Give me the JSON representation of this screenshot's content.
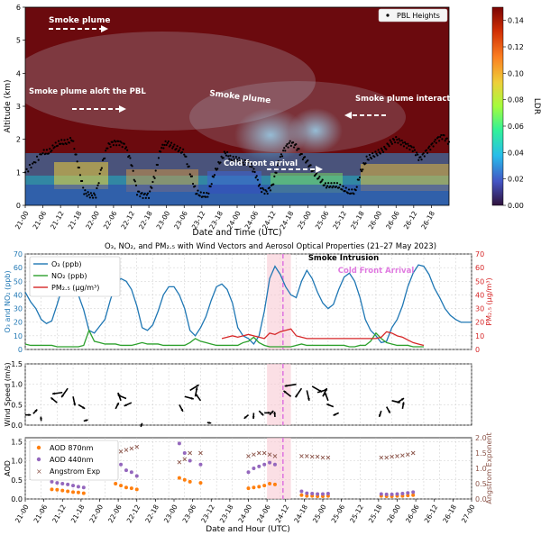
{
  "chart_data": [
    {
      "type": "heatmap",
      "xlabel": "Date and Time (UTC)",
      "ylabel": "Altitude (km)",
      "ylim": [
        0,
        6
      ],
      "yticks": [
        "0",
        "1",
        "2",
        "3",
        "4",
        "5",
        "6"
      ],
      "xticks": [
        "21-00",
        "21-06",
        "21-12",
        "21-18",
        "22-00",
        "22-06",
        "22-12",
        "22-18",
        "23-00",
        "23-06",
        "23-12",
        "23-18",
        "24-00",
        "24-06",
        "24-12",
        "24-18",
        "25-00",
        "25-06",
        "25-12",
        "25-18",
        "26-00",
        "26-06",
        "26-12",
        "26-18"
      ],
      "colorbar": {
        "label": "LDR",
        "range": [
          0,
          0.15
        ],
        "ticks": [
          "0.00",
          "0.02",
          "0.04",
          "0.06",
          "0.08",
          "0.10",
          "0.12",
          "0.14"
        ]
      },
      "legend": {
        "entry": "PBL Heights",
        "placement": "top-right"
      },
      "annotations": [
        "Smoke plume",
        "Smoke plume aloft the PBL",
        "Smoke plume",
        "Smoke plume interacting with the PBL",
        "Cold front arrival"
      ],
      "pbl_heights": {
        "x_hours": [
          0,
          3,
          6,
          8,
          10,
          12,
          14,
          16,
          18,
          20,
          22,
          24,
          26,
          28,
          30,
          32,
          34,
          36,
          38,
          40,
          42,
          44,
          46,
          48,
          50,
          52,
          54,
          56,
          58,
          60,
          62,
          64,
          66,
          68,
          70,
          72,
          74,
          76,
          78,
          80,
          82,
          84,
          86,
          88,
          90,
          92,
          94,
          96,
          98,
          100,
          102,
          104,
          106,
          108,
          110,
          112,
          114,
          116,
          118,
          120,
          122,
          124,
          126,
          128,
          130,
          132,
          134,
          136,
          138,
          140,
          142,
          144,
          146
        ],
        "y_km": [
          1.0,
          1.3,
          1.6,
          1.6,
          1.8,
          1.9,
          1.9,
          2.0,
          1.2,
          0.4,
          0.3,
          0.3,
          1.2,
          1.8,
          1.9,
          1.9,
          1.8,
          1.3,
          0.4,
          0.3,
          0.3,
          0.9,
          1.7,
          1.9,
          1.8,
          1.7,
          1.6,
          1.0,
          0.4,
          0.3,
          0.3,
          0.9,
          1.3,
          1.6,
          1.4,
          1.4,
          1.3,
          1.3,
          1.0,
          0.5,
          0.4,
          0.6,
          1.3,
          1.7,
          1.9,
          1.8,
          1.5,
          1.3,
          1.0,
          0.8,
          0.6,
          0.6,
          0.6,
          0.5,
          0.4,
          0.4,
          1.0,
          1.4,
          1.5,
          1.6,
          1.7,
          1.9,
          2.0,
          1.9,
          1.8,
          1.7,
          1.4,
          1.6,
          1.8,
          2.0,
          2.1,
          1.9,
          1.8
        ]
      }
    },
    {
      "type": "line",
      "title": "O₃, NO₂, and PM₂.₅ with Wind Vectors and Aerosol Optical Properties (21–27 May 2023)",
      "xlabel": "",
      "ylabel": "O₃ and NO₂ (ppb)",
      "y2label": "PM₂.₅ (μg/m³)",
      "ylim": [
        0,
        70
      ],
      "y2lim": [
        0,
        70
      ],
      "yticks": [
        "0",
        "10",
        "20",
        "30",
        "40",
        "50",
        "60",
        "70"
      ],
      "y2ticks": [
        "0",
        "10",
        "20",
        "30",
        "40",
        "50",
        "60",
        "70"
      ],
      "grid": true,
      "legend": "top-left",
      "annotations": [
        "Smoke Intrusion",
        "Cold Front Arrival"
      ],
      "shaded_span_hours": [
        91,
        100
      ],
      "event_line_hour": 97,
      "x_hours": [
        0,
        2,
        4,
        6,
        8,
        10,
        12,
        14,
        16,
        18,
        20,
        22,
        24,
        26,
        28,
        30,
        32,
        34,
        36,
        38,
        40,
        42,
        44,
        46,
        48,
        50,
        52,
        54,
        56,
        58,
        60,
        62,
        64,
        66,
        68,
        70,
        72,
        74,
        76,
        78,
        80,
        82,
        84,
        86,
        88,
        90,
        92,
        94,
        96,
        98,
        100,
        102,
        104,
        106,
        108,
        110,
        112,
        114,
        116,
        118,
        120,
        122,
        124,
        126,
        128,
        130,
        132,
        134,
        136,
        138,
        140,
        142,
        144,
        146,
        148,
        150,
        152,
        154,
        156,
        158,
        160,
        162,
        164,
        166,
        168
      ],
      "series": [
        {
          "name": "O₃ (ppb)",
          "color": "#1f77b4",
          "axis": "left",
          "values": [
            42,
            35,
            30,
            22,
            19,
            21,
            33,
            46,
            51,
            47,
            40,
            29,
            14,
            12,
            17,
            22,
            36,
            48,
            52,
            50,
            44,
            32,
            16,
            14,
            18,
            28,
            40,
            46,
            46,
            40,
            30,
            14,
            10,
            16,
            24,
            36,
            46,
            48,
            44,
            34,
            16,
            10,
            8,
            4,
            10,
            28,
            52,
            61,
            55,
            46,
            40,
            38,
            50,
            58,
            52,
            42,
            34,
            30,
            33,
            44,
            53,
            56,
            50,
            38,
            22,
            14,
            10,
            5,
            6,
            16,
            22,
            32,
            46,
            56,
            62,
            61,
            55,
            45,
            38,
            30,
            25,
            22,
            20,
            20,
            20
          ],
          "xlim": [
            0,
            148
          ]
        },
        {
          "name": "NO₂ (ppb)",
          "color": "#2ca02c",
          "axis": "left",
          "values": [
            4,
            3,
            3,
            3,
            3,
            3,
            2,
            2,
            2,
            2,
            2,
            3,
            14,
            6,
            5,
            4,
            4,
            4,
            3,
            3,
            3,
            4,
            5,
            4,
            4,
            4,
            3,
            3,
            3,
            3,
            3,
            5,
            8,
            6,
            5,
            4,
            3,
            3,
            3,
            3,
            3,
            5,
            6,
            9,
            5,
            3,
            2,
            2,
            2,
            2,
            2,
            3,
            4,
            3,
            3,
            3,
            3,
            3,
            3,
            3,
            3,
            2,
            2,
            3,
            3,
            6,
            12,
            8,
            5,
            4,
            3,
            3,
            3,
            2,
            2,
            2
          ],
          "xlim": [
            0,
            150
          ]
        },
        {
          "name": "PM₂.₅ (μg/m³)",
          "color": "#d62728",
          "axis": "right",
          "x_hours": [
            74,
            76,
            78,
            80,
            82,
            84,
            86,
            88,
            90,
            92,
            94,
            96,
            98,
            100,
            102,
            104,
            106,
            108,
            110,
            112,
            114,
            116,
            118,
            120,
            122,
            124,
            126,
            128,
            130,
            132,
            134,
            136,
            138,
            140,
            142,
            144,
            146,
            148,
            150
          ],
          "values": [
            8,
            9,
            10,
            9,
            10,
            11,
            10,
            9,
            8,
            12,
            11,
            13,
            14,
            15,
            10,
            9,
            8,
            8,
            8,
            8,
            8,
            8,
            8,
            8,
            8,
            8,
            8,
            8,
            8,
            8,
            9,
            13,
            12,
            10,
            9,
            7,
            5,
            4,
            3
          ]
        }
      ]
    },
    {
      "type": "line",
      "xlabel": "",
      "ylabel": "Wind Speed (m/s)",
      "ylim": [
        0,
        1.5
      ],
      "yticks": [
        "0.0",
        "0.5",
        "1.0",
        "1.5"
      ],
      "grid": true,
      "points": [
        {
          "x_hours": 0,
          "speed": 0.25
        },
        {
          "x_hours": 3,
          "speed": 0.28
        },
        {
          "x_hours": 6,
          "speed": 0.1
        },
        {
          "x_hours": 12,
          "speed": 0.55
        },
        {
          "x_hours": 14,
          "speed": 0.8
        },
        {
          "x_hours": 16,
          "speed": 0.9
        },
        {
          "x_hours": 18,
          "speed": 0.7
        },
        {
          "x_hours": 20,
          "speed": 0.5
        },
        {
          "x_hours": 22,
          "speed": 0.1
        },
        {
          "x_hours": 34,
          "speed": 0.4
        },
        {
          "x_hours": 36,
          "speed": 0.6
        },
        {
          "x_hours": 38,
          "speed": 0.65
        },
        {
          "x_hours": 40,
          "speed": 0.55
        },
        {
          "x_hours": 44,
          "speed": 0.05
        },
        {
          "x_hours": 58,
          "speed": 0.5
        },
        {
          "x_hours": 60,
          "speed": 0.7
        },
        {
          "x_hours": 62,
          "speed": 0.85
        },
        {
          "x_hours": 64,
          "speed": 0.7
        },
        {
          "x_hours": 66,
          "speed": 0.6
        },
        {
          "x_hours": 70,
          "speed": 0.05
        },
        {
          "x_hours": 84,
          "speed": 0.25
        },
        {
          "x_hours": 86,
          "speed": 0.3
        },
        {
          "x_hours": 88,
          "speed": 0.35
        },
        {
          "x_hours": 90,
          "speed": 0.3
        },
        {
          "x_hours": 92,
          "speed": 0.25
        },
        {
          "x_hours": 94,
          "speed": 0.2
        },
        {
          "x_hours": 100,
          "speed": 0.7
        },
        {
          "x_hours": 102,
          "speed": 1.0
        },
        {
          "x_hours": 104,
          "speed": 0.9
        },
        {
          "x_hours": 106,
          "speed": 0.85
        },
        {
          "x_hours": 108,
          "speed": 0.95
        },
        {
          "x_hours": 110,
          "speed": 0.8
        },
        {
          "x_hours": 112,
          "speed": 0.7
        },
        {
          "x_hours": 114,
          "speed": 0.6
        },
        {
          "x_hours": 116,
          "speed": 0.45
        },
        {
          "x_hours": 118,
          "speed": 0.3
        },
        {
          "x_hours": 134,
          "speed": 0.35
        },
        {
          "x_hours": 136,
          "speed": 0.45
        },
        {
          "x_hours": 138,
          "speed": 0.6
        },
        {
          "x_hours": 140,
          "speed": 0.55
        },
        {
          "x_hours": 142,
          "speed": 0.4
        }
      ]
    },
    {
      "type": "scatter",
      "xlabel": "Date and Hour (UTC)",
      "ylabel": "AOD",
      "y2label": "Angstrom Exponent",
      "ylim": [
        0,
        1.6
      ],
      "y2lim": [
        0,
        2.0
      ],
      "yticks": [
        "0.0",
        "0.5",
        "1.0",
        "1.5"
      ],
      "y2ticks": [
        "0.0",
        "0.5",
        "1.0",
        "1.5",
        "2.0"
      ],
      "grid": true,
      "legend": "top-left",
      "xticks": [
        "21-00",
        "21-06",
        "21-12",
        "21-18",
        "22-00",
        "22-06",
        "22-12",
        "22-18",
        "23-00",
        "23-06",
        "23-12",
        "23-18",
        "24-00",
        "24-06",
        "24-12",
        "24-18",
        "25-00",
        "25-06",
        "25-12",
        "25-18",
        "26-00",
        "26-06",
        "26-12",
        "26-18",
        "27-00"
      ],
      "series": [
        {
          "name": "AOD 870nm",
          "color": "#ff7f0e",
          "marker": "circle",
          "x_hours": [
            10,
            12,
            14,
            16,
            18,
            20,
            22,
            34,
            36,
            38,
            40,
            42,
            58,
            60,
            62,
            66,
            84,
            86,
            88,
            90,
            92,
            94,
            104,
            106,
            108,
            110,
            112,
            114,
            134,
            136,
            138,
            140,
            142,
            144,
            146
          ],
          "values": [
            0.25,
            0.24,
            0.22,
            0.2,
            0.18,
            0.17,
            0.15,
            0.4,
            0.35,
            0.3,
            0.28,
            0.25,
            0.55,
            0.5,
            0.45,
            0.42,
            0.28,
            0.3,
            0.32,
            0.35,
            0.4,
            0.38,
            0.1,
            0.08,
            0.08,
            0.07,
            0.07,
            0.08,
            0.08,
            0.07,
            0.07,
            0.08,
            0.08,
            0.09,
            0.1
          ]
        },
        {
          "name": "AOD 440nm",
          "color": "#9467bd",
          "marker": "circle",
          "x_hours": [
            10,
            12,
            14,
            16,
            18,
            20,
            22,
            34,
            36,
            38,
            40,
            42,
            58,
            60,
            62,
            66,
            84,
            86,
            88,
            90,
            92,
            94,
            104,
            106,
            108,
            110,
            112,
            114,
            134,
            136,
            138,
            140,
            142,
            144,
            146
          ],
          "values": [
            0.45,
            0.42,
            0.4,
            0.38,
            0.35,
            0.32,
            0.3,
            1.0,
            0.9,
            0.75,
            0.7,
            0.6,
            1.45,
            1.2,
            1.0,
            0.9,
            0.7,
            0.8,
            0.85,
            0.9,
            0.95,
            0.9,
            0.2,
            0.15,
            0.14,
            0.13,
            0.13,
            0.14,
            0.13,
            0.12,
            0.12,
            0.13,
            0.14,
            0.16,
            0.18
          ]
        },
        {
          "name": "Angstrom Exp",
          "color": "#8c564b",
          "marker": "x",
          "axis": "right",
          "x_hours": [
            10,
            12,
            14,
            16,
            18,
            20,
            22,
            34,
            36,
            38,
            40,
            42,
            58,
            60,
            62,
            66,
            84,
            86,
            88,
            90,
            92,
            94,
            104,
            106,
            108,
            110,
            112,
            114,
            134,
            136,
            138,
            140,
            142,
            144,
            146
          ],
          "values": [
            1.7,
            1.7,
            1.7,
            1.7,
            1.7,
            1.68,
            1.65,
            1.6,
            1.55,
            1.6,
            1.65,
            1.7,
            1.2,
            1.3,
            1.5,
            1.5,
            1.4,
            1.45,
            1.5,
            1.5,
            1.45,
            1.4,
            1.4,
            1.4,
            1.38,
            1.38,
            1.35,
            1.35,
            1.35,
            1.35,
            1.38,
            1.4,
            1.42,
            1.45,
            1.5
          ]
        }
      ]
    }
  ]
}
